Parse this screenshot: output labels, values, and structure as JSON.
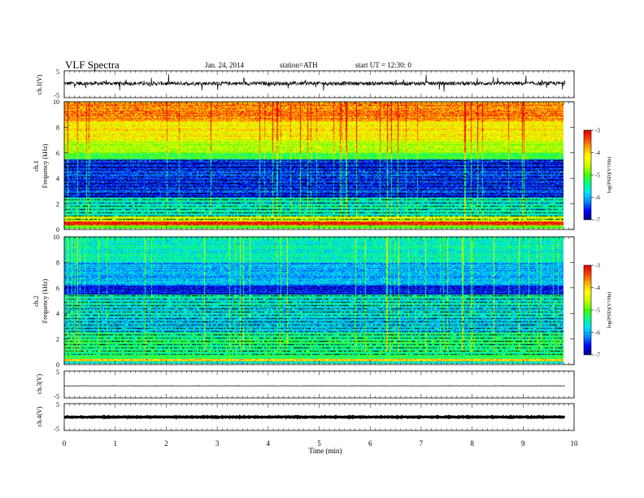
{
  "header": {
    "title": "VLF Spectra",
    "date": "Jan. 24, 2014",
    "station": "station=ATH",
    "start": "start UT =  12:30: 0"
  },
  "colors": {
    "trace": "#000000",
    "colormap": [
      "#00007a",
      "#0000ff",
      "#0088ff",
      "#00e0ff",
      "#00ff90",
      "#40ff00",
      "#c8ff00",
      "#ffff00",
      "#ffb000",
      "#ff4000",
      "#e00000"
    ]
  },
  "chart_data": [
    {
      "type": "line",
      "id": "ch1-waveform",
      "ylabel": "ch.1(V)",
      "ylim": [
        -5,
        5
      ],
      "yticks": [
        "5",
        "-5"
      ],
      "xlim": [
        0,
        10
      ],
      "series": [
        {
          "values_description": "noisy waveform around ~0 V with spikes up to about +/-3 V"
        }
      ],
      "level": 0.3,
      "noise_amplitude": 1.4
    },
    {
      "type": "heatmap",
      "id": "ch1-spectrogram",
      "ylabel": "ch.1\nFrequency (kHz)",
      "ylim": [
        0,
        10
      ],
      "yticks": [
        "0",
        "2",
        "4",
        "6",
        "8",
        "10"
      ],
      "xlim": [
        0,
        9.8
      ],
      "colorbar": {
        "label": "log(PSD)(V²/Hz)",
        "range": [
          -7,
          -3
        ],
        "ticks": [
          "-3",
          "-4",
          "-5",
          "-6",
          "-7"
        ]
      },
      "bands_logpsd": [
        {
          "f": [
            0.0,
            0.3
          ],
          "v": -5.0
        },
        {
          "f": [
            0.3,
            0.6
          ],
          "v": -3.2
        },
        {
          "f": [
            0.6,
            1.0
          ],
          "v": -4.5
        },
        {
          "f": [
            1.0,
            2.5
          ],
          "v": -5.6
        },
        {
          "f": [
            2.5,
            5.5
          ],
          "v": -6.5
        },
        {
          "f": [
            5.5,
            6.0
          ],
          "v": -5.2
        },
        {
          "f": [
            6.0,
            7.0
          ],
          "v": -4.6
        },
        {
          "f": [
            7.0,
            8.5
          ],
          "v": -4.2
        },
        {
          "f": [
            8.5,
            10.0
          ],
          "v": -3.7
        }
      ]
    },
    {
      "type": "heatmap",
      "id": "ch2-spectrogram",
      "ylabel": "ch.2\nFrequency (kHz)",
      "ylim": [
        0,
        10
      ],
      "yticks": [
        "0",
        "2",
        "4",
        "6",
        "8",
        "10"
      ],
      "xlim": [
        0,
        9.8
      ],
      "colorbar": {
        "label": "log(PSD)(V²/Hz)",
        "range": [
          -7,
          -3
        ],
        "ticks": [
          "-3",
          "-4",
          "-5",
          "-6",
          "-7"
        ]
      },
      "bands_logpsd": [
        {
          "f": [
            0.0,
            0.2
          ],
          "v": -5.5
        },
        {
          "f": [
            0.2,
            0.4
          ],
          "v": -4.0
        },
        {
          "f": [
            0.4,
            2.5
          ],
          "v": -5.3
        },
        {
          "f": [
            2.5,
            4.5
          ],
          "v": -5.8
        },
        {
          "f": [
            4.5,
            5.5
          ],
          "v": -5.6
        },
        {
          "f": [
            5.5,
            6.2
          ],
          "v": -6.6
        },
        {
          "f": [
            6.2,
            8.0
          ],
          "v": -6.0
        },
        {
          "f": [
            8.0,
            10.0
          ],
          "v": -5.6
        }
      ]
    },
    {
      "type": "line",
      "id": "ch3-waveform",
      "ylabel": "ch.3(V)",
      "ylim": [
        -5,
        5
      ],
      "yticks": [
        "5",
        "-5"
      ],
      "xlim": [
        0,
        10
      ],
      "level": -0.5,
      "noise_amplitude": 0.1
    },
    {
      "type": "line",
      "id": "ch4-waveform",
      "ylabel": "ch.4(V)",
      "ylim": [
        -5,
        5
      ],
      "yticks": [
        "5",
        "-5"
      ],
      "xlim": [
        0,
        10
      ],
      "level": 0.0,
      "noise_amplitude": 0.25
    }
  ],
  "xaxis": {
    "label": "Time (min)",
    "ticks": [
      "0",
      "1",
      "2",
      "3",
      "4",
      "5",
      "6",
      "7",
      "8",
      "9",
      "10"
    ],
    "range": [
      0,
      10
    ]
  }
}
